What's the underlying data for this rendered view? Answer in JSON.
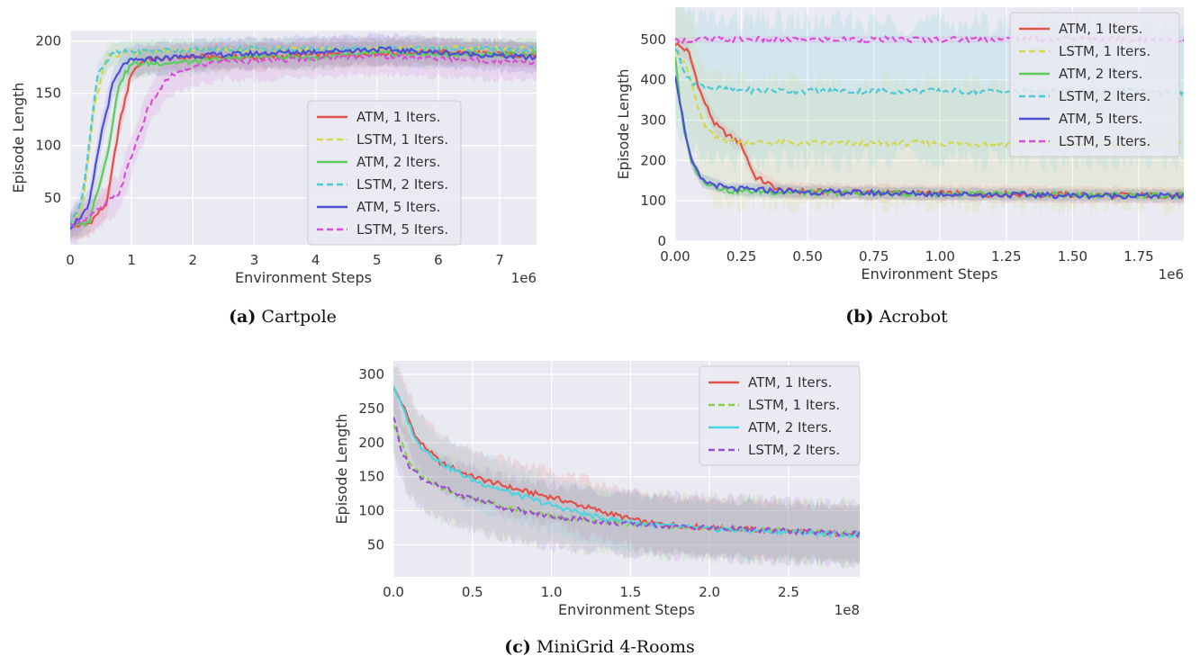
{
  "figure": {
    "captions": [
      {
        "tag": "(a)",
        "text": "Cartpole"
      },
      {
        "tag": "(b)",
        "text": "Acrobot"
      },
      {
        "tag": "(c)",
        "text": "MiniGrid 4-Rooms"
      }
    ]
  },
  "chart_data": [
    {
      "id": "cartpole",
      "type": "line",
      "title": "",
      "xlabel": "Environment Steps",
      "ylabel": "Episode Length",
      "xscale_label": "1e6",
      "xlim": [
        0,
        7.6
      ],
      "ylim": [
        5,
        210
      ],
      "xticks": [
        0,
        1,
        2,
        3,
        4,
        5,
        6,
        7
      ],
      "xtick_labels": [
        "0",
        "1",
        "2",
        "3",
        "4",
        "5",
        "6",
        "7"
      ],
      "yticks": [
        50,
        100,
        150,
        200
      ],
      "ytick_labels": [
        "50",
        "100",
        "150",
        "200"
      ],
      "legend_position": "center-right",
      "series": [
        {
          "name": "ATM, 1 Iters.",
          "color": "#e0524a",
          "dash": false,
          "band": 12,
          "points": [
            [
              0,
              22
            ],
            [
              0.3,
              25
            ],
            [
              0.6,
              45
            ],
            [
              0.8,
              120
            ],
            [
              1.0,
              170
            ],
            [
              1.2,
              182
            ],
            [
              2,
              185
            ],
            [
              3,
              184
            ],
            [
              4,
              187
            ],
            [
              5,
              188
            ],
            [
              6,
              190
            ],
            [
              7.6,
              186
            ]
          ]
        },
        {
          "name": "LSTM, 1 Iters.",
          "color": "#d4d84a",
          "dash": true,
          "band": 10,
          "points": [
            [
              0,
              24
            ],
            [
              0.2,
              40
            ],
            [
              0.4,
              140
            ],
            [
              0.6,
              185
            ],
            [
              1,
              190
            ],
            [
              2,
              191
            ],
            [
              3,
              192
            ],
            [
              4,
              192
            ],
            [
              5,
              193
            ],
            [
              6,
              193
            ],
            [
              7.6,
              192
            ]
          ]
        },
        {
          "name": "ATM, 2 Iters.",
          "color": "#5ccc5c",
          "dash": false,
          "band": 12,
          "points": [
            [
              0,
              22
            ],
            [
              0.3,
              26
            ],
            [
              0.6,
              90
            ],
            [
              0.8,
              160
            ],
            [
              1.0,
              178
            ],
            [
              2,
              180
            ],
            [
              3,
              186
            ],
            [
              4,
              184
            ],
            [
              5,
              188
            ],
            [
              6,
              187
            ],
            [
              7.6,
              188
            ]
          ]
        },
        {
          "name": "LSTM, 2 Iters.",
          "color": "#4cc8d6",
          "dash": true,
          "band": 10,
          "points": [
            [
              0,
              24
            ],
            [
              0.2,
              50
            ],
            [
              0.45,
              170
            ],
            [
              0.7,
              188
            ],
            [
              1,
              190
            ],
            [
              2,
              192
            ],
            [
              3,
              193
            ],
            [
              4,
              192
            ],
            [
              5,
              193
            ],
            [
              6,
              192
            ],
            [
              7.6,
              192
            ]
          ]
        },
        {
          "name": "ATM, 5 Iters.",
          "color": "#4d4fd6",
          "dash": false,
          "band": 14,
          "points": [
            [
              0,
              22
            ],
            [
              0.3,
              40
            ],
            [
              0.5,
              110
            ],
            [
              0.7,
              160
            ],
            [
              0.9,
              180
            ],
            [
              1.2,
              182
            ],
            [
              2,
              186
            ],
            [
              3,
              188
            ],
            [
              4,
              190
            ],
            [
              5,
              192
            ],
            [
              6,
              189
            ],
            [
              7.6,
              184
            ]
          ]
        },
        {
          "name": "LSTM, 5 Iters.",
          "color": "#d64fd6",
          "dash": true,
          "band": 18,
          "points": [
            [
              0,
              22
            ],
            [
              0.4,
              35
            ],
            [
              0.8,
              55
            ],
            [
              1.0,
              90
            ],
            [
              1.3,
              140
            ],
            [
              1.6,
              165
            ],
            [
              2,
              175
            ],
            [
              2.5,
              182
            ],
            [
              3,
              180
            ],
            [
              4,
              184
            ],
            [
              5,
              186
            ],
            [
              6,
              183
            ],
            [
              7.6,
              180
            ]
          ]
        }
      ]
    },
    {
      "id": "acrobot",
      "type": "line",
      "title": "",
      "xlabel": "Environment Steps",
      "ylabel": "Episode Length",
      "xscale_label": "1e6",
      "xlim": [
        0,
        1.92
      ],
      "ylim": [
        0,
        580
      ],
      "xticks": [
        0,
        0.25,
        0.5,
        0.75,
        1.0,
        1.25,
        1.5,
        1.75
      ],
      "xtick_labels": [
        "0.00",
        "0.25",
        "0.50",
        "0.75",
        "1.00",
        "1.25",
        "1.50",
        "1.75"
      ],
      "yticks": [
        0,
        100,
        200,
        300,
        400,
        500
      ],
      "ytick_labels": [
        "0",
        "100",
        "200",
        "300",
        "400",
        "500"
      ],
      "legend_position": "top-right",
      "series": [
        {
          "name": "ATM, 1 Iters.",
          "color": "#e0524a",
          "dash": false,
          "band": 20,
          "points": [
            [
              0,
              490
            ],
            [
              0.05,
              470
            ],
            [
              0.1,
              360
            ],
            [
              0.15,
              290
            ],
            [
              0.2,
              262
            ],
            [
              0.25,
              240
            ],
            [
              0.3,
              160
            ],
            [
              0.4,
              125
            ],
            [
              0.6,
              122
            ],
            [
              1.0,
              118
            ],
            [
              1.5,
              115
            ],
            [
              1.92,
              113
            ]
          ]
        },
        {
          "name": "LSTM, 1 Iters.",
          "color": "#d4d84a",
          "dash": true,
          "band": 150,
          "points": [
            [
              0,
              480
            ],
            [
              0.05,
              420
            ],
            [
              0.1,
              300
            ],
            [
              0.15,
              255
            ],
            [
              0.25,
              245
            ],
            [
              0.5,
              243
            ],
            [
              1.0,
              242
            ],
            [
              1.5,
              240
            ],
            [
              1.92,
              240
            ]
          ]
        },
        {
          "name": "ATM, 2 Iters.",
          "color": "#5ccc5c",
          "dash": false,
          "band": 15,
          "points": [
            [
              0,
              460
            ],
            [
              0.03,
              280
            ],
            [
              0.06,
              200
            ],
            [
              0.1,
              150
            ],
            [
              0.2,
              125
            ],
            [
              0.5,
              120
            ],
            [
              1.0,
              117
            ],
            [
              1.5,
              115
            ],
            [
              1.92,
              113
            ]
          ]
        },
        {
          "name": "LSTM, 2 Iters.",
          "color": "#4cc8d6",
          "dash": true,
          "band": 170,
          "points": [
            [
              0,
              480
            ],
            [
              0.05,
              400
            ],
            [
              0.1,
              385
            ],
            [
              0.2,
              375
            ],
            [
              0.5,
              372
            ],
            [
              1.0,
              372
            ],
            [
              1.5,
              371
            ],
            [
              1.92,
              370
            ]
          ]
        },
        {
          "name": "ATM, 5 Iters.",
          "color": "#4d4fd6",
          "dash": false,
          "band": 15,
          "points": [
            [
              0,
              415
            ],
            [
              0.03,
              300
            ],
            [
              0.06,
              200
            ],
            [
              0.1,
              150
            ],
            [
              0.2,
              130
            ],
            [
              0.5,
              122
            ],
            [
              1.0,
              117
            ],
            [
              1.5,
              113
            ],
            [
              1.92,
              112
            ]
          ]
        },
        {
          "name": "LSTM, 5 Iters.",
          "color": "#d64fd6",
          "dash": true,
          "band": 8,
          "points": [
            [
              0,
              495
            ],
            [
              0.1,
              500
            ],
            [
              0.5,
              500
            ],
            [
              1.0,
              500
            ],
            [
              1.5,
              501
            ],
            [
              1.92,
              500
            ]
          ]
        }
      ]
    },
    {
      "id": "minigrid",
      "type": "line",
      "title": "",
      "xlabel": "Environment Steps",
      "ylabel": "Episode Length",
      "xscale_label": "1e8",
      "xlim": [
        0,
        2.95
      ],
      "ylim": [
        3,
        320
      ],
      "xticks": [
        0,
        0.5,
        1.0,
        1.5,
        2.0,
        2.5
      ],
      "xtick_labels": [
        "0.0",
        "0.5",
        "1.0",
        "1.5",
        "2.0",
        "2.5"
      ],
      "yticks": [
        50,
        100,
        150,
        200,
        250,
        300
      ],
      "ytick_labels": [
        "50",
        "100",
        "150",
        "200",
        "250",
        "300"
      ],
      "legend_position": "top-right",
      "series": [
        {
          "name": "ATM, 1 Iters.",
          "color": "#e0524a",
          "dash": false,
          "band": 40,
          "points": [
            [
              0,
              280
            ],
            [
              0.05,
              260
            ],
            [
              0.15,
              205
            ],
            [
              0.3,
              170
            ],
            [
              0.5,
              150
            ],
            [
              0.8,
              130
            ],
            [
              1.0,
              120
            ],
            [
              1.3,
              100
            ],
            [
              1.6,
              82
            ],
            [
              2.0,
              75
            ],
            [
              2.5,
              70
            ],
            [
              2.95,
              65
            ]
          ]
        },
        {
          "name": "LSTM, 1 Iters.",
          "color": "#8ad14a",
          "dash": true,
          "band": 45,
          "points": [
            [
              0,
              230
            ],
            [
              0.05,
              200
            ],
            [
              0.1,
              170
            ],
            [
              0.2,
              145
            ],
            [
              0.4,
              125
            ],
            [
              0.7,
              105
            ],
            [
              1.0,
              92
            ],
            [
              1.4,
              82
            ],
            [
              2.0,
              75
            ],
            [
              2.5,
              70
            ],
            [
              2.95,
              66
            ]
          ]
        },
        {
          "name": "ATM, 2 Iters.",
          "color": "#4cd4de",
          "dash": false,
          "band": 40,
          "points": [
            [
              0,
              285
            ],
            [
              0.05,
              255
            ],
            [
              0.15,
              200
            ],
            [
              0.3,
              170
            ],
            [
              0.5,
              145
            ],
            [
              0.8,
              122
            ],
            [
              1.0,
              108
            ],
            [
              1.3,
              90
            ],
            [
              1.6,
              80
            ],
            [
              2.0,
              73
            ],
            [
              2.5,
              69
            ],
            [
              2.95,
              64
            ]
          ]
        },
        {
          "name": "LSTM, 2 Iters.",
          "color": "#9a4fd6",
          "dash": true,
          "band": 45,
          "points": [
            [
              0,
              240
            ],
            [
              0.02,
              220
            ],
            [
              0.05,
              190
            ],
            [
              0.1,
              165
            ],
            [
              0.2,
              145
            ],
            [
              0.4,
              125
            ],
            [
              0.7,
              105
            ],
            [
              1.0,
              92
            ],
            [
              1.4,
              82
            ],
            [
              2.0,
              75
            ],
            [
              2.5,
              70
            ],
            [
              2.95,
              66
            ]
          ]
        }
      ]
    }
  ]
}
